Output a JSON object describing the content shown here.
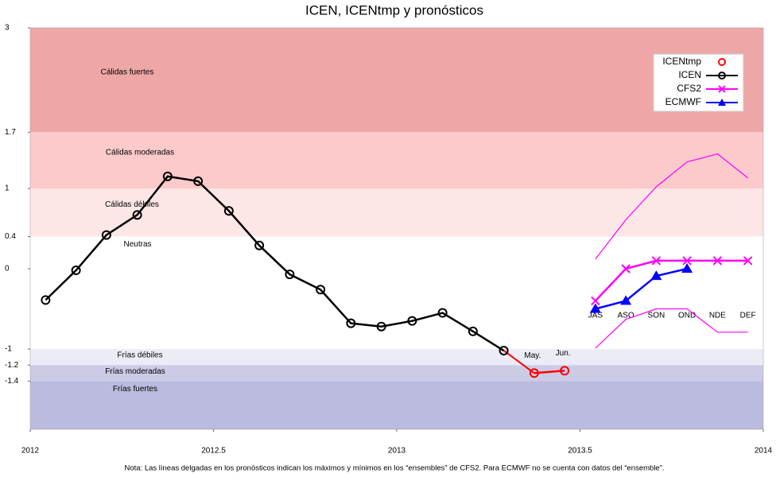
{
  "chart_data": {
    "type": "line",
    "title": "ICEN, ICENtmp y pronósticos",
    "note": "Nota: Las líneas delgadas en los pronósticos indican los máximos y mínimos en los “ensembles” de CFS2. Para ECMWF no se cuenta con datos del “ensemble”.",
    "xlim": [
      2012,
      2014
    ],
    "xticks": [
      2012,
      2012.5,
      2013,
      2013.5,
      2014
    ],
    "ylim": [
      -2,
      3
    ],
    "yticks": [
      3,
      1.7,
      1,
      0.4,
      0,
      -1,
      -1.2,
      -1.4
    ],
    "bands": [
      {
        "label": "Cálidas fuertes",
        "from": 1.7,
        "to": 3,
        "color": "#eea6a6"
      },
      {
        "label": "Cálidas moderadas",
        "from": 1,
        "to": 1.7,
        "color": "#fccaca"
      },
      {
        "label": "Cálidas débiles",
        "from": 0.4,
        "to": 1,
        "color": "#fde6e6"
      },
      {
        "label": "Neutras",
        "from": -1,
        "to": 0.4,
        "color": "#ffffff"
      },
      {
        "label": "Frías débiles",
        "from": -1.2,
        "to": -1,
        "color": "#ececf6"
      },
      {
        "label": "Frías moderadas",
        "from": -1.4,
        "to": -1.2,
        "color": "#cbcbe6"
      },
      {
        "label": "Frías fuertes",
        "from": -2,
        "to": -1.4,
        "color": "#bbbbdf"
      }
    ],
    "forecast_categories": [
      "JAS",
      "ASO",
      "SON",
      "OND",
      "NDE",
      "DEF"
    ],
    "legend": "upper right",
    "series": [
      {
        "name": "ICENtmp",
        "color": "#ff0000",
        "marker": "circle",
        "x": [
          2013.375,
          2013.458
        ],
        "values": [
          -1.3,
          -1.27
        ],
        "point_labels": [
          "May.",
          "Jun."
        ]
      },
      {
        "name": "ICEN",
        "color": "#000000",
        "marker": "circle",
        "x": [
          2012.042,
          2012.125,
          2012.208,
          2012.292,
          2012.375,
          2012.458,
          2012.542,
          2012.625,
          2012.708,
          2012.792,
          2012.875,
          2012.958,
          2013.042,
          2013.125,
          2013.208,
          2013.292
        ],
        "values": [
          -0.39,
          -0.02,
          0.42,
          0.67,
          1.15,
          1.09,
          0.72,
          0.29,
          -0.07,
          -0.26,
          -0.68,
          -0.72,
          -0.65,
          -0.55,
          -0.78,
          -1.02
        ]
      },
      {
        "name": "CFS2",
        "color": "#ff00ff",
        "marker": "x",
        "x": [
          2013.542,
          2013.625,
          2013.708,
          2013.792,
          2013.875,
          2013.958
        ],
        "values": [
          -0.4,
          0,
          0.1,
          0.1,
          0.1,
          0.1
        ]
      },
      {
        "name": "ECMWF",
        "color": "#0000ff",
        "marker": "triangle",
        "x": [
          2013.542,
          2013.625,
          2013.708,
          2013.792,
          2013.875,
          2013.958
        ],
        "values": [
          -0.5,
          -0.4,
          -0.09,
          0,
          null,
          null
        ]
      },
      {
        "color": "#ff00ff",
        "marker": "none",
        "x": [
          2013.542,
          2013.625,
          2013.708,
          2013.792,
          2013.875,
          2013.958
        ],
        "values": [
          0.12,
          0.61,
          1.02,
          1.33,
          1.43,
          1.13
        ]
      },
      {
        "color": "#ff00ff",
        "marker": "none",
        "x": [
          2013.542,
          2013.625,
          2013.708,
          2013.792,
          2013.875,
          2013.958
        ],
        "values": [
          -0.99,
          -0.63,
          -0.5,
          -0.5,
          -0.79,
          -0.79
        ]
      }
    ]
  }
}
